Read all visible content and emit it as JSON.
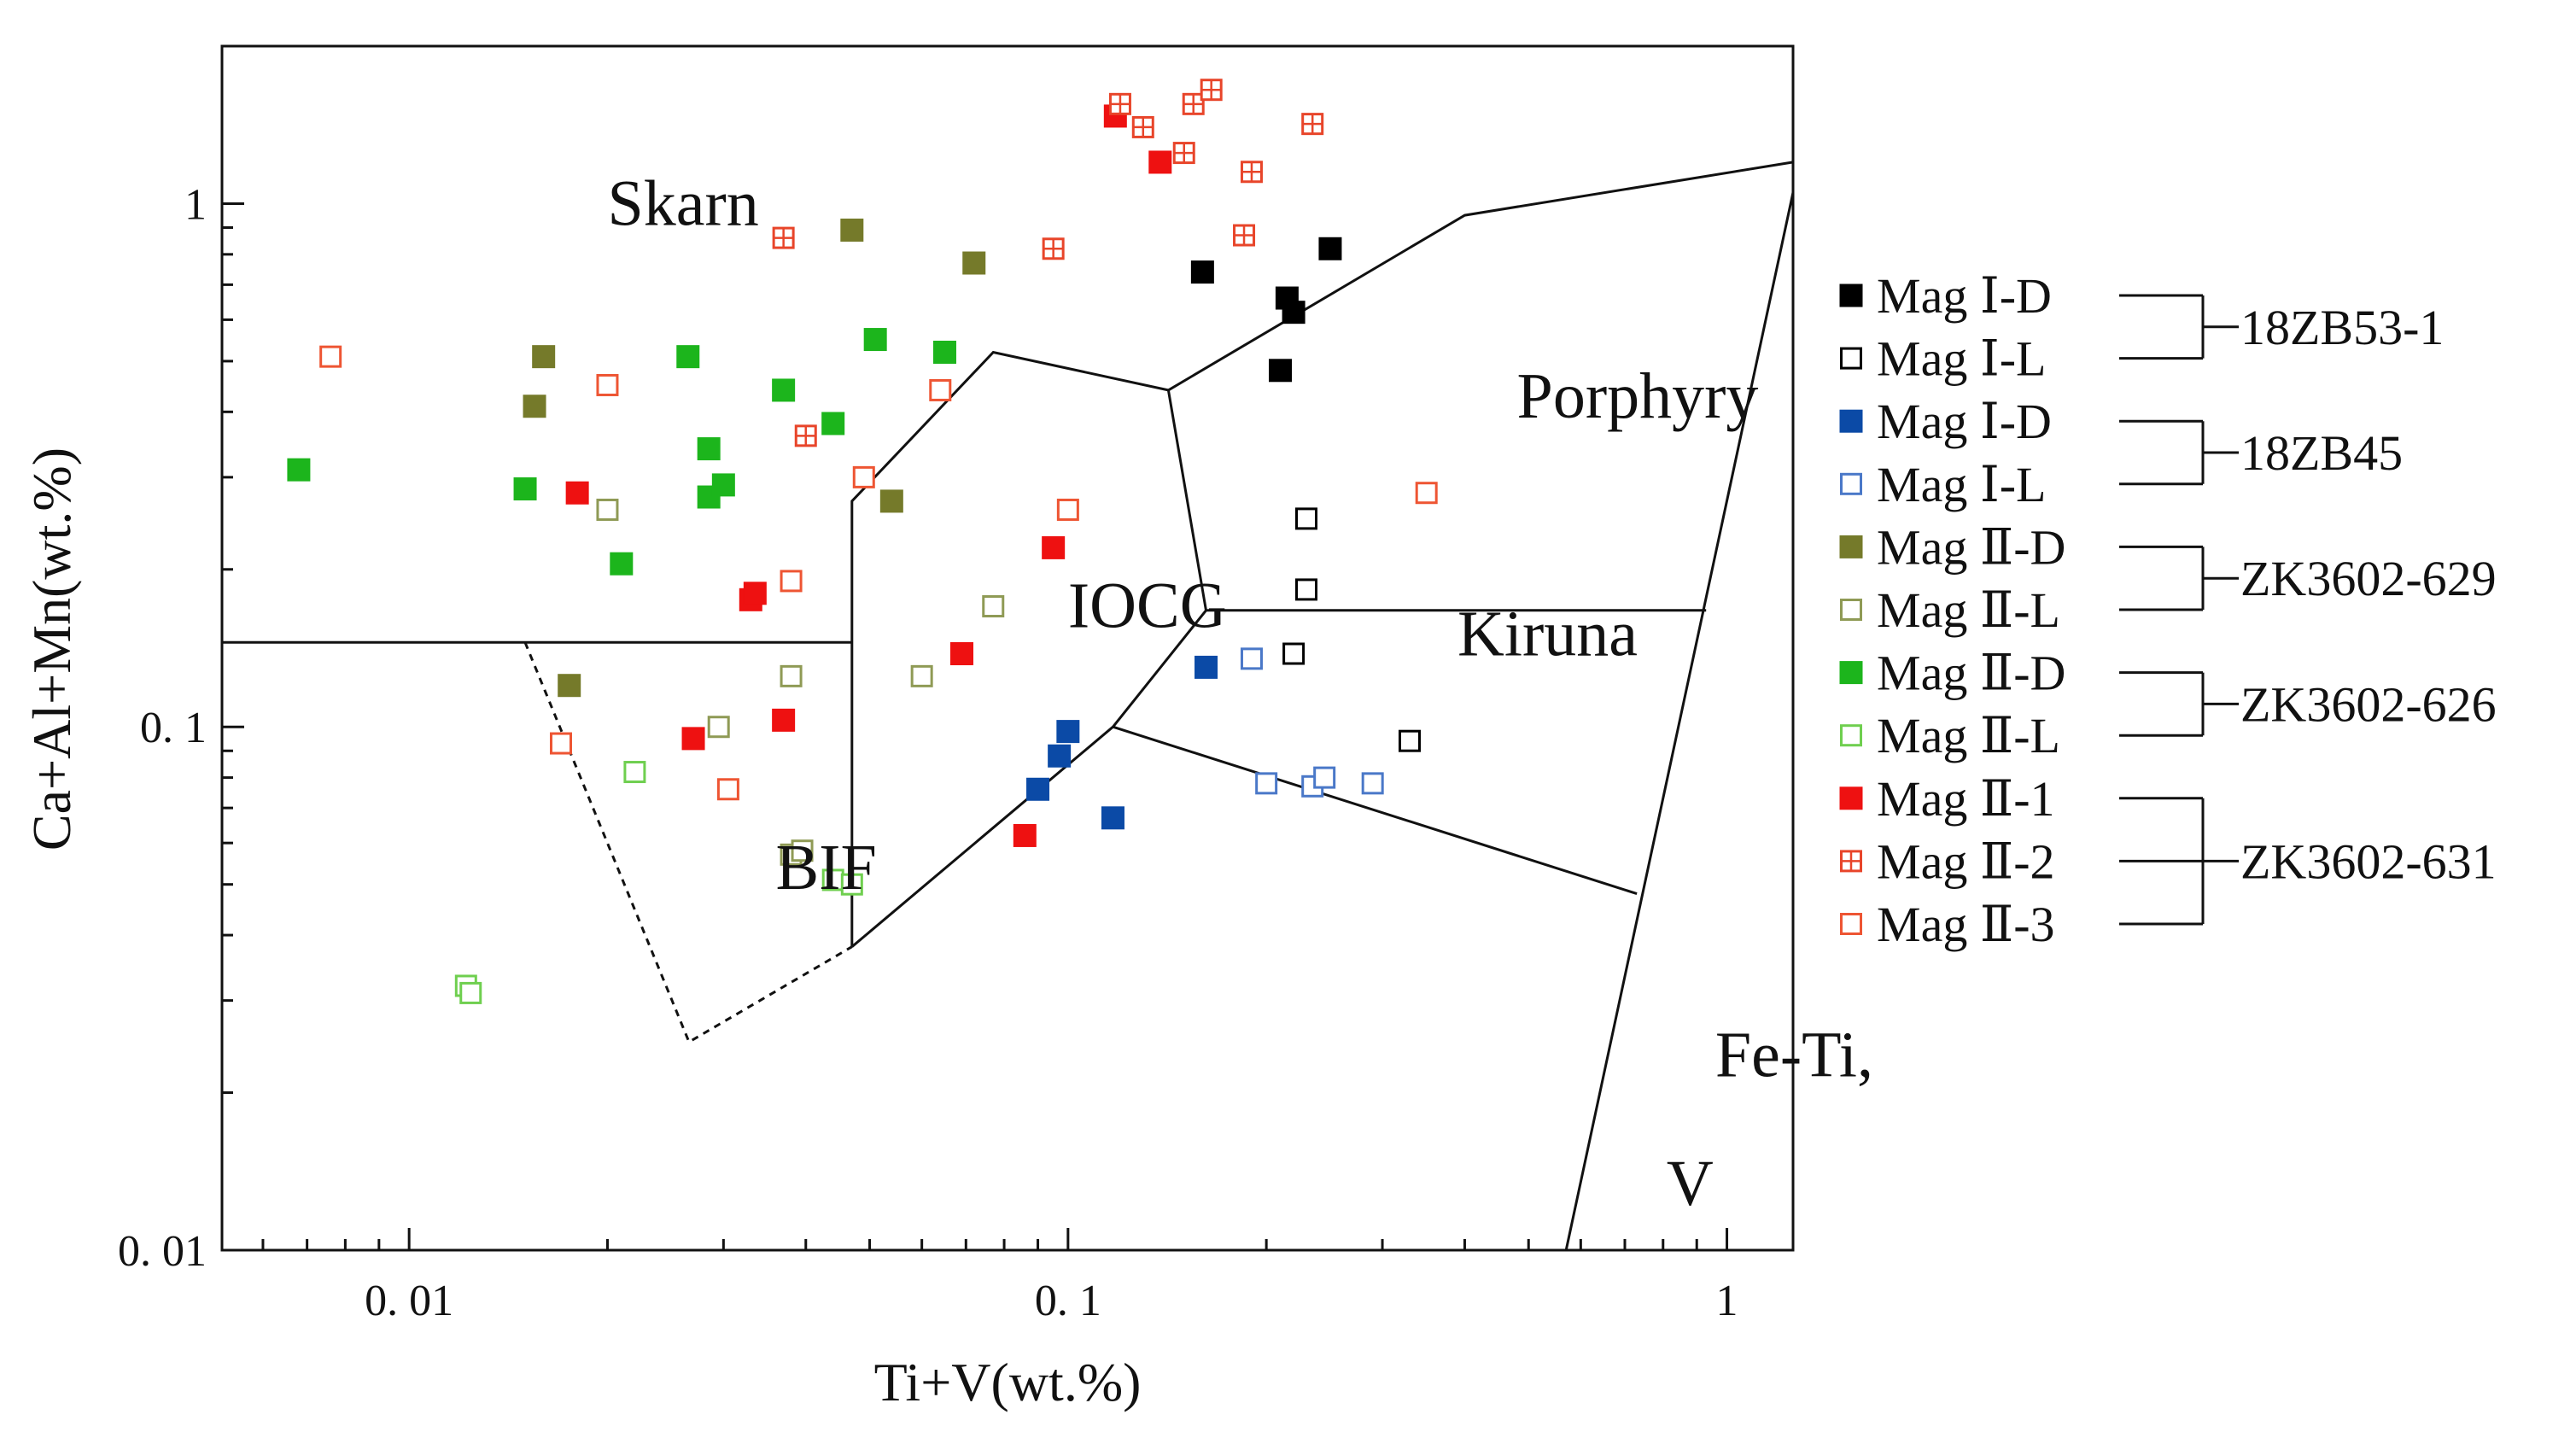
{
  "chart_data": {
    "type": "scatter",
    "xlabel": "Ti+V(wt.%)",
    "ylabel": "Ca+Al+Mn(wt.%)",
    "xscale": "log",
    "yscale": "log",
    "xlim": [
      0.0052,
      1.26
    ],
    "ylim": [
      0.01,
      2.0
    ],
    "xticks": [
      {
        "value": 0.01,
        "label": "0. 01"
      },
      {
        "value": 0.1,
        "label": "0. 1"
      },
      {
        "value": 1,
        "label": "1"
      }
    ],
    "yticks": [
      {
        "value": 0.01,
        "label": "0. 01"
      },
      {
        "value": 0.1,
        "label": "0. 1"
      },
      {
        "value": 1,
        "label": "1"
      }
    ],
    "grid": false,
    "legend_position": "right",
    "field_labels": [
      {
        "text": "Skarn",
        "x": 0.02,
        "y": 0.91
      },
      {
        "text": "Porphyry",
        "x": 0.48,
        "y": 0.39
      },
      {
        "text": "IOCG",
        "x": 0.1,
        "y": 0.155
      },
      {
        "text": "Kiruna",
        "x": 0.39,
        "y": 0.137
      },
      {
        "text": "BIF",
        "x": 0.036,
        "y": 0.049
      },
      {
        "text": "Fe-Ti,",
        "x": 0.96,
        "y": 0.0215
      },
      {
        "text": "V",
        "x": 0.81,
        "y": 0.0122
      }
    ],
    "boundaries": [
      {
        "style": "solid",
        "points": [
          [
            0.0052,
            0.145
          ],
          [
            0.047,
            0.145
          ]
        ]
      },
      {
        "style": "solid",
        "points": [
          [
            0.047,
            0.038
          ],
          [
            0.047,
            0.27
          ],
          [
            0.077,
            0.52
          ],
          [
            0.142,
            0.44
          ],
          [
            0.162,
            0.167
          ],
          [
            0.117,
            0.1
          ],
          [
            0.047,
            0.038
          ]
        ]
      },
      {
        "style": "solid",
        "points": [
          [
            0.142,
            0.44
          ],
          [
            0.4,
            0.95
          ],
          [
            1.26,
            1.2
          ]
        ]
      },
      {
        "style": "solid",
        "points": [
          [
            0.162,
            0.167
          ],
          [
            0.93,
            0.167
          ]
        ]
      },
      {
        "style": "solid",
        "points": [
          [
            0.117,
            0.1
          ],
          [
            0.73,
            0.048
          ]
        ]
      },
      {
        "style": "solid",
        "points": [
          [
            0.57,
            0.01
          ],
          [
            1.26,
            1.05
          ]
        ]
      },
      {
        "style": "dashed",
        "points": [
          [
            0.015,
            0.145
          ],
          [
            0.0266,
            0.025
          ],
          [
            0.047,
            0.038
          ]
        ]
      }
    ],
    "legend_groups": [
      {
        "sample": "18ZB53-1",
        "entries": [
          0,
          1
        ]
      },
      {
        "sample": "18ZB45",
        "entries": [
          2,
          3
        ]
      },
      {
        "sample": "ZK3602-629",
        "entries": [
          4,
          5
        ]
      },
      {
        "sample": "ZK3602-626",
        "entries": [
          6,
          7
        ]
      },
      {
        "sample": "ZK3602-631",
        "entries": [
          8,
          9,
          10
        ]
      }
    ],
    "series": [
      {
        "name": "Mag Ⅰ-D",
        "color": "#000000",
        "marker": "filled-square",
        "points": [
          [
            0.16,
            0.74
          ],
          [
            0.21,
            0.48
          ],
          [
            0.215,
            0.66
          ],
          [
            0.22,
            0.62
          ],
          [
            0.25,
            0.82
          ]
        ]
      },
      {
        "name": "Mag Ⅰ-L",
        "color": "#000000",
        "marker": "open-square",
        "points": [
          [
            0.22,
            0.138
          ],
          [
            0.23,
            0.183
          ],
          [
            0.23,
            0.25
          ],
          [
            0.33,
            0.094
          ]
        ]
      },
      {
        "name": "Mag Ⅰ-D",
        "color": "#0b4aa6",
        "marker": "filled-square",
        "points": [
          [
            0.09,
            0.076
          ],
          [
            0.097,
            0.088
          ],
          [
            0.1,
            0.098
          ],
          [
            0.117,
            0.067
          ],
          [
            0.162,
            0.13
          ]
        ]
      },
      {
        "name": "Mag Ⅰ-L",
        "color": "#4a78c8",
        "marker": "open-square",
        "points": [
          [
            0.19,
            0.135
          ],
          [
            0.2,
            0.078
          ],
          [
            0.235,
            0.077
          ],
          [
            0.245,
            0.08
          ],
          [
            0.29,
            0.078
          ]
        ]
      },
      {
        "name": "Mag Ⅱ-D",
        "color": "#757a2a",
        "marker": "filled-square",
        "points": [
          [
            0.0155,
            0.41
          ],
          [
            0.016,
            0.51
          ],
          [
            0.0175,
            0.12
          ],
          [
            0.047,
            0.89
          ],
          [
            0.054,
            0.27
          ],
          [
            0.072,
            0.77
          ]
        ]
      },
      {
        "name": "Mag Ⅱ-L",
        "color": "#8f9a55",
        "marker": "open-square",
        "points": [
          [
            0.02,
            0.26
          ],
          [
            0.0295,
            0.1
          ],
          [
            0.038,
            0.057
          ],
          [
            0.038,
            0.125
          ],
          [
            0.0395,
            0.058
          ],
          [
            0.06,
            0.125
          ],
          [
            0.077,
            0.17
          ]
        ]
      },
      {
        "name": "Mag Ⅱ-D",
        "color": "#1cb51c",
        "marker": "filled-square",
        "points": [
          [
            0.0068,
            0.31
          ],
          [
            0.015,
            0.285
          ],
          [
            0.021,
            0.205
          ],
          [
            0.0265,
            0.51
          ],
          [
            0.0285,
            0.34
          ],
          [
            0.0285,
            0.275
          ],
          [
            0.03,
            0.29
          ],
          [
            0.037,
            0.44
          ],
          [
            0.044,
            0.38
          ],
          [
            0.051,
            0.55
          ],
          [
            0.065,
            0.52
          ]
        ]
      },
      {
        "name": "Mag Ⅱ-L",
        "color": "#6fcf4f",
        "marker": "open-square",
        "points": [
          [
            0.0122,
            0.032
          ],
          [
            0.0124,
            0.031
          ],
          [
            0.022,
            0.082
          ],
          [
            0.044,
            0.051
          ],
          [
            0.047,
            0.05
          ]
        ]
      },
      {
        "name": "Mag Ⅱ-1",
        "color": "#ee1111",
        "marker": "filled-square",
        "points": [
          [
            0.018,
            0.28
          ],
          [
            0.027,
            0.095
          ],
          [
            0.033,
            0.175
          ],
          [
            0.0335,
            0.18
          ],
          [
            0.037,
            0.103
          ],
          [
            0.069,
            0.138
          ],
          [
            0.086,
            0.062
          ],
          [
            0.095,
            0.22
          ],
          [
            0.118,
            1.47
          ],
          [
            0.138,
            1.2
          ]
        ]
      },
      {
        "name": "Mag Ⅱ-2",
        "color": "#e8452a",
        "marker": "crossed-square",
        "points": [
          [
            0.037,
            0.86
          ],
          [
            0.04,
            0.36
          ],
          [
            0.095,
            0.82
          ],
          [
            0.12,
            1.55
          ],
          [
            0.13,
            1.4
          ],
          [
            0.15,
            1.25
          ],
          [
            0.155,
            1.55
          ],
          [
            0.165,
            1.65
          ],
          [
            0.185,
            0.87
          ],
          [
            0.19,
            1.15
          ],
          [
            0.235,
            1.42
          ]
        ]
      },
      {
        "name": "Mag Ⅱ-3",
        "color": "#ee5533",
        "marker": "open-square",
        "points": [
          [
            0.0076,
            0.51
          ],
          [
            0.017,
            0.093
          ],
          [
            0.02,
            0.45
          ],
          [
            0.0305,
            0.076
          ],
          [
            0.038,
            0.19
          ],
          [
            0.049,
            0.3
          ],
          [
            0.064,
            0.44
          ],
          [
            0.1,
            0.26
          ],
          [
            0.35,
            0.28
          ]
        ]
      }
    ]
  }
}
